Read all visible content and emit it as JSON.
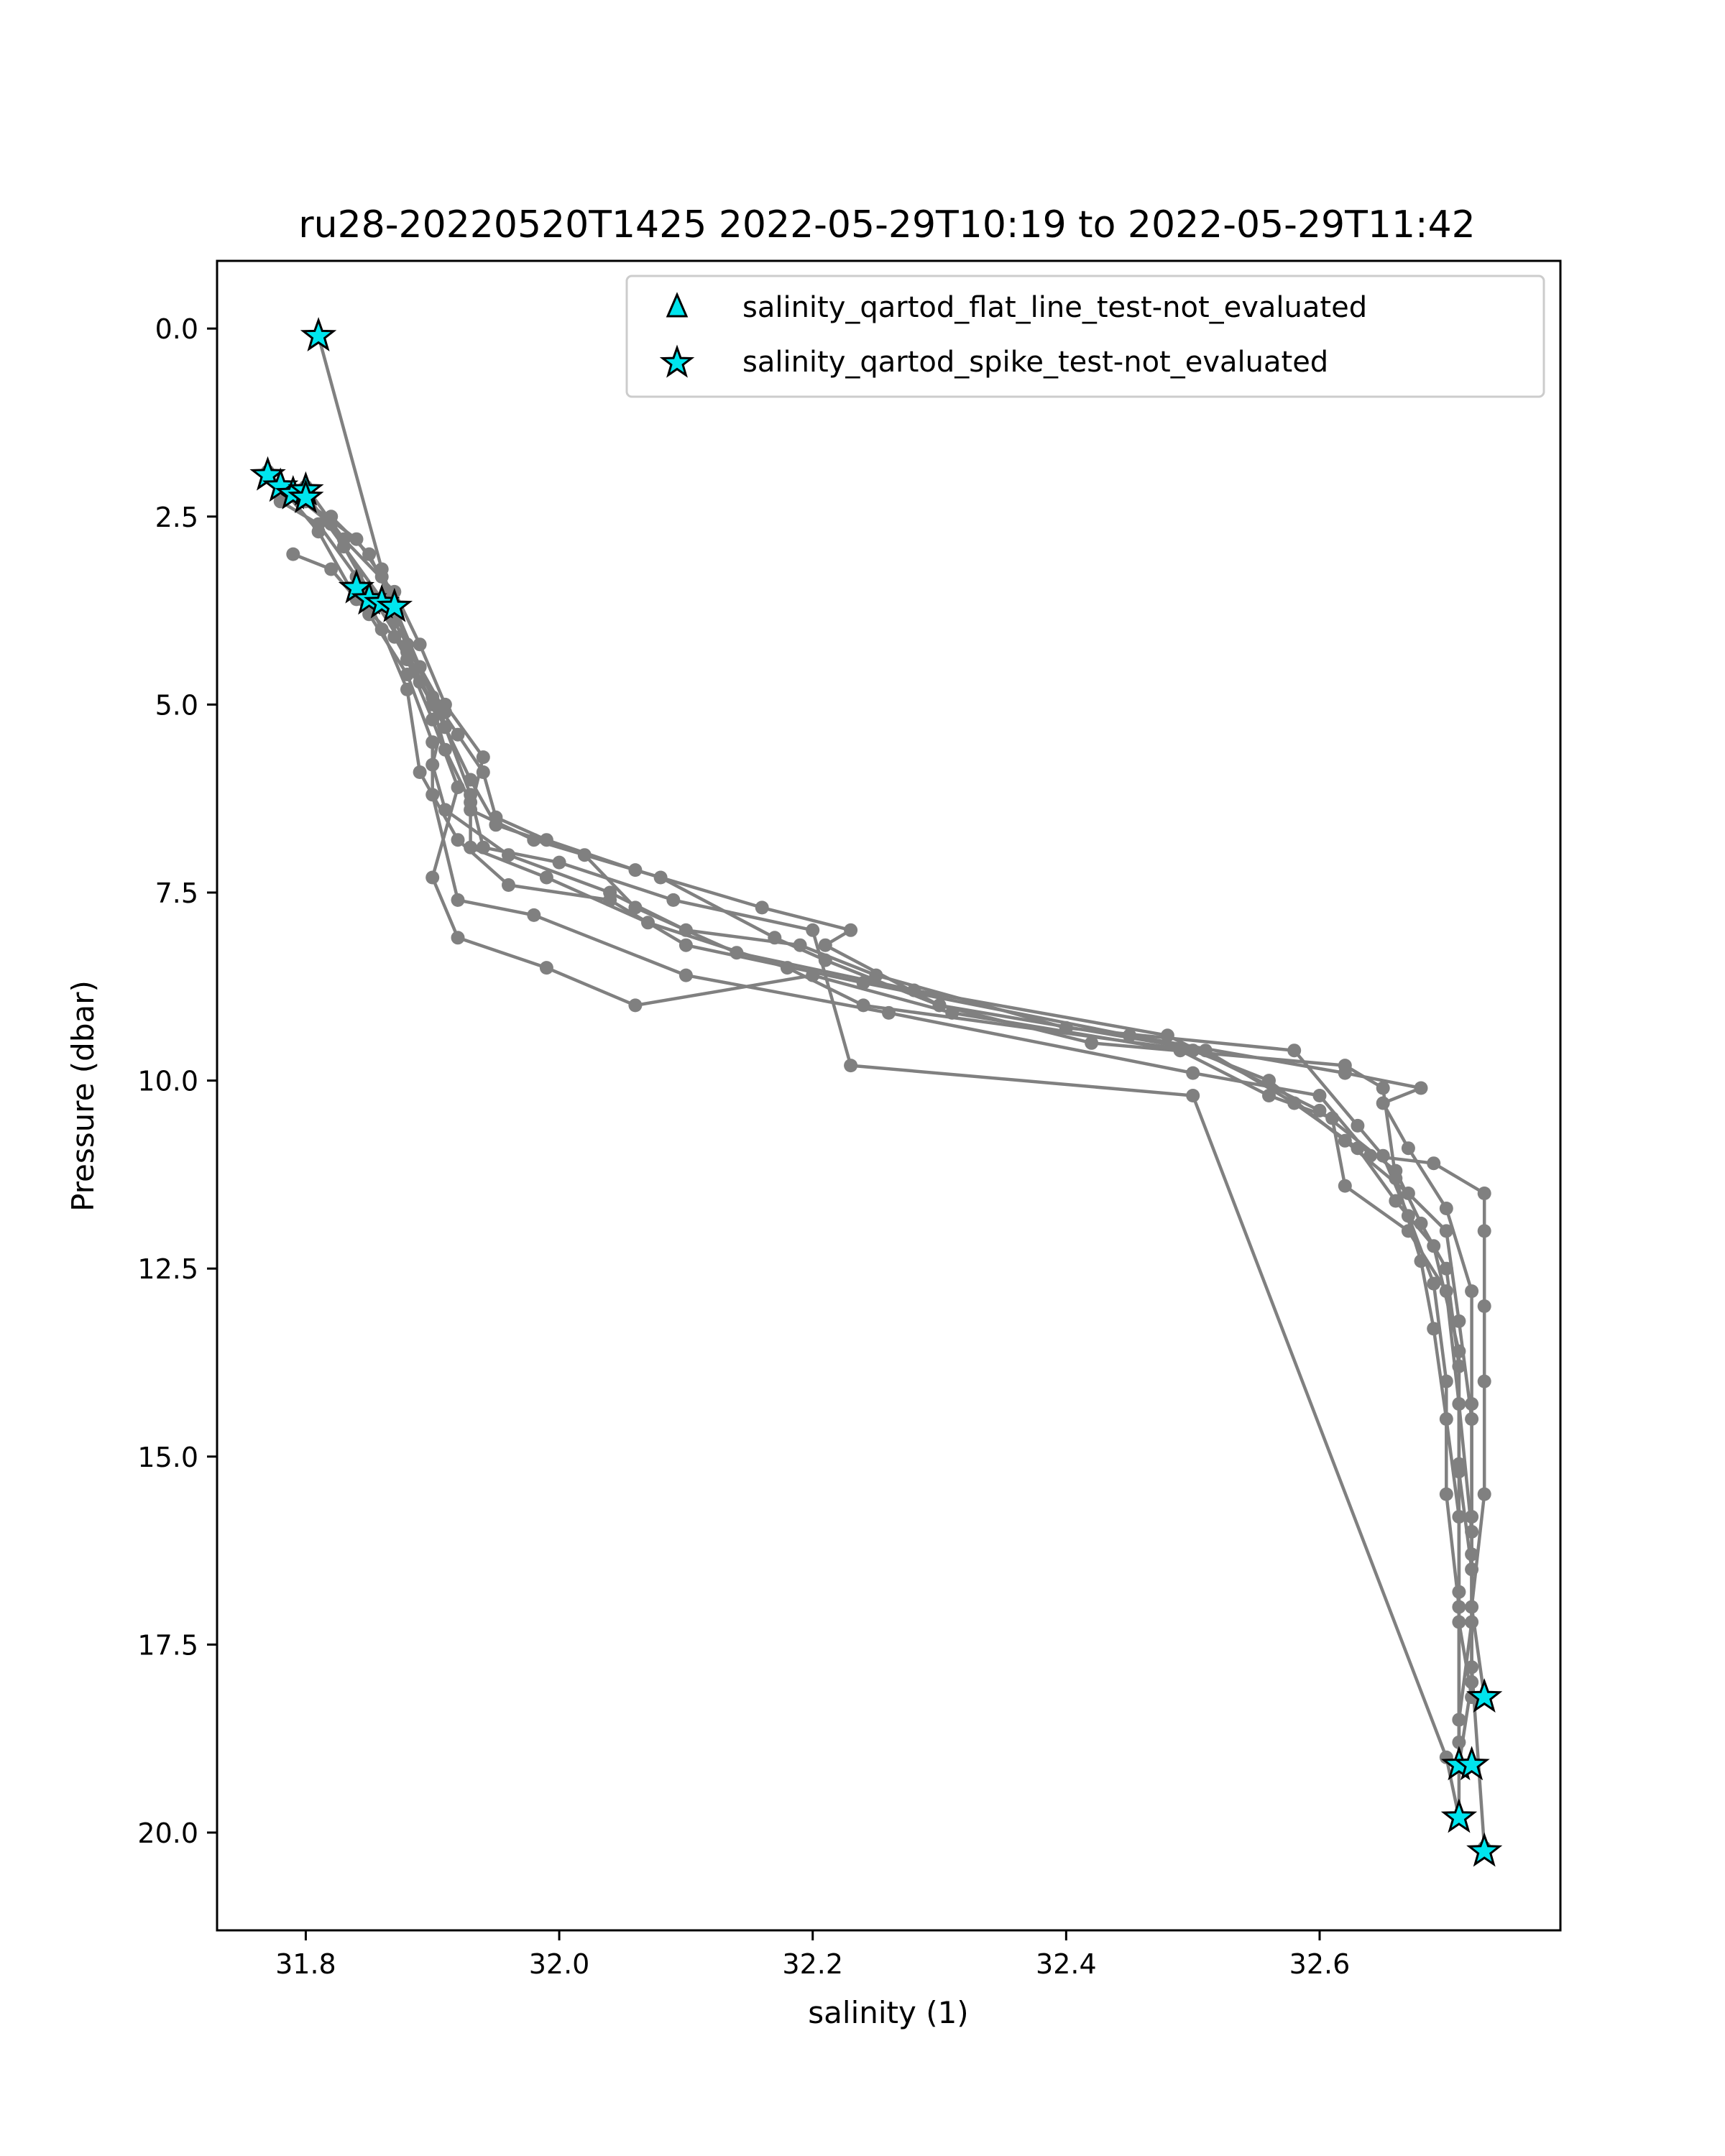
{
  "chart_data": {
    "type": "line",
    "title": "ru28-20220520T1425 2022-05-29T10:19 to 2022-05-29T11:42",
    "xlabel": "salinity (1)",
    "ylabel": "Pressure (dbar)",
    "xlim": [
      31.73,
      32.79
    ],
    "ylim": [
      21.3,
      -0.9
    ],
    "y_inverted": true,
    "grid": false,
    "legend_position": "top-right",
    "line_color": "#808080",
    "marker_color": "#00e5ee",
    "xticks": [
      "31.8",
      "32.0",
      "32.2",
      "32.4",
      "32.6"
    ],
    "xtick_values": [
      31.8,
      32.0,
      32.2,
      32.4,
      32.6
    ],
    "yticks": [
      "0.0",
      "2.5",
      "5.0",
      "7.5",
      "10.0",
      "12.5",
      "15.0",
      "17.5",
      "20.0"
    ],
    "ytick_values": [
      0.0,
      2.5,
      5.0,
      7.5,
      10.0,
      12.5,
      15.0,
      17.5,
      20.0
    ],
    "legend": [
      {
        "label": "salinity_qartod_flat_line_test-not_evaluated",
        "marker": "triangle"
      },
      {
        "label": "salinity_qartod_spike_test-not_evaluated",
        "marker": "star"
      }
    ],
    "series": [
      {
        "points": [
          [
            31.81,
            0.1
          ],
          [
            31.86,
            3.2
          ],
          [
            31.87,
            3.7
          ],
          [
            31.88,
            4.2
          ],
          [
            31.9,
            4.9
          ],
          [
            31.92,
            5.4
          ],
          [
            31.94,
            5.9
          ],
          [
            31.95,
            6.5
          ],
          [
            31.99,
            6.8
          ],
          [
            32.06,
            7.2
          ],
          [
            32.16,
            7.7
          ],
          [
            32.23,
            8.0
          ],
          [
            32.21,
            8.2
          ],
          [
            32.3,
            9.0
          ],
          [
            32.42,
            9.5
          ],
          [
            32.62,
            9.8
          ],
          [
            32.65,
            10.1
          ],
          [
            32.66,
            11.3
          ],
          [
            32.68,
            12.4
          ],
          [
            32.69,
            13.3
          ],
          [
            32.7,
            14.5
          ],
          [
            32.71,
            15.8
          ],
          [
            32.71,
            17.2
          ],
          [
            32.72,
            18.2
          ]
        ]
      },
      {
        "points": [
          [
            31.78,
            2.1
          ],
          [
            31.8,
            2.3
          ],
          [
            31.84,
            2.8
          ],
          [
            31.86,
            3.3
          ],
          [
            31.87,
            3.9
          ],
          [
            31.89,
            4.5
          ],
          [
            31.91,
            5.1
          ],
          [
            31.9,
            5.8
          ],
          [
            31.91,
            6.4
          ],
          [
            31.96,
            7.0
          ],
          [
            32.04,
            7.5
          ],
          [
            32.1,
            8.0
          ],
          [
            32.19,
            8.2
          ],
          [
            32.25,
            8.6
          ],
          [
            32.4,
            9.3
          ],
          [
            32.58,
            9.6
          ],
          [
            32.63,
            10.6
          ],
          [
            32.65,
            11.0
          ],
          [
            32.67,
            11.8
          ],
          [
            32.69,
            12.7
          ],
          [
            32.7,
            14.0
          ],
          [
            32.7,
            15.5
          ],
          [
            32.71,
            17.0
          ],
          [
            32.71,
            18.5
          ],
          [
            32.71,
            19.1
          ]
        ]
      },
      {
        "points": [
          [
            31.79,
            2.2
          ],
          [
            31.82,
            2.6
          ],
          [
            31.85,
            3.5
          ],
          [
            31.88,
            4.3
          ],
          [
            31.9,
            5.0
          ],
          [
            31.91,
            5.6
          ],
          [
            31.93,
            6.3
          ],
          [
            31.93,
            6.9
          ],
          [
            31.99,
            7.3
          ],
          [
            32.07,
            7.9
          ],
          [
            32.18,
            8.5
          ],
          [
            32.24,
            9.0
          ],
          [
            32.5,
            9.6
          ],
          [
            32.56,
            10.0
          ],
          [
            32.62,
            10.8
          ],
          [
            32.67,
            11.5
          ],
          [
            32.7,
            12.0
          ],
          [
            32.71,
            13.2
          ],
          [
            32.72,
            14.5
          ],
          [
            32.72,
            15.8
          ],
          [
            32.72,
            17.2
          ],
          [
            32.71,
            18.5
          ],
          [
            32.71,
            19.8
          ]
        ]
      },
      {
        "points": [
          [
            31.77,
            1.9
          ],
          [
            31.81,
            2.7
          ],
          [
            31.84,
            3.6
          ],
          [
            31.87,
            4.1
          ],
          [
            31.89,
            4.7
          ],
          [
            31.91,
            5.3
          ],
          [
            31.93,
            6.0
          ],
          [
            31.95,
            6.6
          ],
          [
            32.02,
            7.0
          ],
          [
            32.06,
            7.7
          ],
          [
            32.14,
            8.3
          ],
          [
            32.28,
            8.8
          ],
          [
            32.48,
            9.4
          ],
          [
            32.6,
            10.4
          ],
          [
            32.66,
            11.2
          ],
          [
            32.68,
            11.9
          ],
          [
            32.7,
            12.5
          ],
          [
            32.71,
            13.8
          ],
          [
            32.71,
            15.2
          ],
          [
            32.72,
            16.5
          ],
          [
            32.72,
            18.0
          ],
          [
            32.71,
            19.1
          ]
        ]
      },
      {
        "points": [
          [
            31.79,
            3.0
          ],
          [
            31.82,
            3.2
          ],
          [
            31.85,
            3.8
          ],
          [
            31.88,
            4.6
          ],
          [
            31.9,
            5.5
          ],
          [
            31.9,
            6.2
          ],
          [
            31.92,
            7.6
          ],
          [
            31.98,
            7.8
          ],
          [
            32.1,
            8.6
          ],
          [
            32.26,
            9.1
          ],
          [
            32.5,
            9.9
          ],
          [
            32.6,
            10.2
          ],
          [
            32.64,
            11.0
          ],
          [
            32.69,
            11.1
          ],
          [
            32.73,
            11.5
          ],
          [
            32.73,
            12.0
          ],
          [
            32.73,
            13.0
          ],
          [
            32.73,
            14.0
          ],
          [
            32.73,
            15.5
          ],
          [
            32.72,
            17.0
          ],
          [
            32.73,
            18.2
          ]
        ]
      },
      {
        "points": [
          [
            31.8,
            2.2
          ],
          [
            31.83,
            2.9
          ],
          [
            31.86,
            3.6
          ],
          [
            31.88,
            4.4
          ],
          [
            31.9,
            5.2
          ],
          [
            31.92,
            6.1
          ],
          [
            31.9,
            7.3
          ],
          [
            31.92,
            8.1
          ],
          [
            31.99,
            8.5
          ],
          [
            32.06,
            9.0
          ],
          [
            32.2,
            8.6
          ],
          [
            32.31,
            9.1
          ],
          [
            32.49,
            9.6
          ],
          [
            32.56,
            10.2
          ],
          [
            32.61,
            10.5
          ],
          [
            32.62,
            11.4
          ],
          [
            32.67,
            12.0
          ],
          [
            32.7,
            12.8
          ],
          [
            32.71,
            14.3
          ],
          [
            32.72,
            16.0
          ],
          [
            32.72,
            17.8
          ],
          [
            32.73,
            20.2
          ]
        ]
      },
      {
        "points": [
          [
            31.78,
            2.3
          ],
          [
            31.81,
            2.6
          ],
          [
            31.84,
            3.3
          ],
          [
            31.86,
            4.0
          ],
          [
            31.88,
            4.8
          ],
          [
            31.89,
            5.9
          ],
          [
            31.92,
            6.8
          ],
          [
            31.96,
            7.4
          ],
          [
            32.04,
            7.6
          ],
          [
            32.1,
            8.2
          ],
          [
            32.24,
            8.7
          ],
          [
            32.45,
            9.4
          ],
          [
            32.62,
            9.9
          ],
          [
            32.68,
            10.1
          ],
          [
            32.65,
            10.3
          ],
          [
            32.67,
            10.9
          ],
          [
            32.7,
            11.7
          ],
          [
            32.72,
            12.8
          ],
          [
            32.72,
            14.3
          ],
          [
            32.72,
            16.3
          ],
          [
            32.72,
            18.0
          ]
        ]
      },
      {
        "points": [
          [
            31.8,
            2.1
          ],
          [
            31.83,
            2.8
          ],
          [
            31.87,
            3.5
          ],
          [
            31.89,
            4.2
          ],
          [
            31.91,
            5.0
          ],
          [
            31.94,
            5.7
          ],
          [
            31.93,
            6.4
          ],
          [
            31.98,
            6.8
          ],
          [
            32.08,
            7.3
          ],
          [
            32.17,
            8.1
          ],
          [
            32.21,
            8.4
          ],
          [
            32.3,
            9.0
          ],
          [
            32.51,
            9.6
          ],
          [
            32.58,
            10.3
          ],
          [
            32.63,
            10.9
          ],
          [
            32.66,
            11.6
          ],
          [
            32.69,
            12.2
          ],
          [
            32.71,
            13.6
          ],
          [
            32.71,
            15.1
          ],
          [
            32.71,
            16.8
          ],
          [
            32.71,
            18.8
          ],
          [
            32.71,
            19.1
          ]
        ]
      },
      {
        "points": [
          [
            31.82,
            2.5
          ],
          [
            31.85,
            3.0
          ],
          [
            31.87,
            3.7
          ],
          [
            31.89,
            4.5
          ],
          [
            31.91,
            5.3
          ],
          [
            31.93,
            6.2
          ],
          [
            31.94,
            6.9
          ],
          [
            32.0,
            7.1
          ],
          [
            32.09,
            7.6
          ],
          [
            32.2,
            8.0
          ],
          [
            32.23,
            9.8
          ],
          [
            32.5,
            10.2
          ],
          [
            32.7,
            19.0
          ],
          [
            32.71,
            19.8
          ]
        ]
      }
    ],
    "spike_flags": [
      [
        31.81,
        0.1
      ],
      [
        31.77,
        1.95
      ],
      [
        31.78,
        2.1
      ],
      [
        31.79,
        2.2
      ],
      [
        31.8,
        2.15
      ],
      [
        31.8,
        2.25
      ],
      [
        31.84,
        3.45
      ],
      [
        31.85,
        3.6
      ],
      [
        31.86,
        3.65
      ],
      [
        31.87,
        3.7
      ],
      [
        32.73,
        18.2
      ],
      [
        32.71,
        19.1
      ],
      [
        32.72,
        19.1
      ],
      [
        32.71,
        19.8
      ],
      [
        32.73,
        20.25
      ]
    ]
  }
}
